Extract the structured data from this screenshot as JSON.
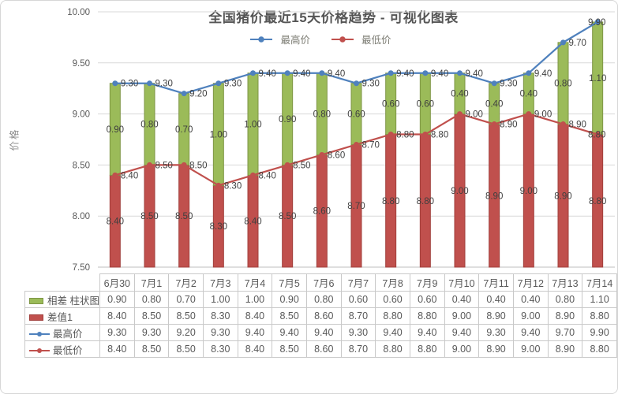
{
  "window": {
    "background": "#ffffff",
    "border_color": "#d6d6d6"
  },
  "chart": {
    "title": "全国猪价最近15天价格趋势 - 可视化图表",
    "ylabel": "价格",
    "legend": [
      {
        "label": "最高价",
        "color": "#4F81BD",
        "icon": "blue-line-marker-icon"
      },
      {
        "label": "最低价",
        "color": "#C0504D",
        "icon": "red-line-marker-icon"
      }
    ]
  },
  "chart_data": {
    "type": "combo",
    "categories": [
      "6月30",
      "7月1",
      "7月2",
      "7月3",
      "7月4",
      "7月5",
      "7月6",
      "7月7",
      "7月8",
      "7月9",
      "7月10",
      "7月11",
      "7月12",
      "7月13",
      "7月14"
    ],
    "series": [
      {
        "name": "相差 柱状图",
        "type": "bar",
        "role": "diff",
        "color": "#9BBB59",
        "border": "#7E9645",
        "values": [
          0.9,
          0.8,
          0.7,
          1.0,
          1.0,
          0.9,
          0.8,
          0.6,
          0.6,
          0.6,
          0.4,
          0.4,
          0.4,
          0.8,
          1.1
        ]
      },
      {
        "name": "差值1",
        "type": "bar",
        "role": "base",
        "color": "#C0504D",
        "border": "#A13F3C",
        "values": [
          8.4,
          8.5,
          8.5,
          8.3,
          8.4,
          8.5,
          8.6,
          8.7,
          8.8,
          8.8,
          9.0,
          8.9,
          9.0,
          8.9,
          8.8
        ]
      },
      {
        "name": "最高价",
        "type": "line",
        "role": "high",
        "color": "#4F81BD",
        "values": [
          9.3,
          9.3,
          9.2,
          9.3,
          9.4,
          9.4,
          9.4,
          9.3,
          9.4,
          9.4,
          9.4,
          9.3,
          9.4,
          9.7,
          9.9
        ]
      },
      {
        "name": "最低价",
        "type": "line",
        "role": "low",
        "color": "#C0504D",
        "values": [
          8.4,
          8.5,
          8.5,
          8.3,
          8.4,
          8.5,
          8.6,
          8.7,
          8.8,
          8.8,
          9.0,
          8.9,
          9.0,
          8.9,
          8.8
        ]
      }
    ],
    "ylim": [
      7.5,
      10.0
    ],
    "yticks": [
      "7.50",
      "8.00",
      "8.50",
      "9.00",
      "9.50",
      "10.00"
    ],
    "grid": true,
    "legend_position": "top",
    "colors": {
      "gridline": "#D9D9D9",
      "axis_line": "#BFBFBF",
      "data_label": "#3f3f3f",
      "tick_label": "#595959"
    }
  },
  "table": {
    "columns": [
      "6月30",
      "7月1",
      "7月2",
      "7月3",
      "7月4",
      "7月5",
      "7月6",
      "7月7",
      "7月8",
      "7月9",
      "7月10",
      "7月11",
      "7月12",
      "7月13",
      "7月14"
    ],
    "rows": [
      {
        "label": "相差 柱状图",
        "icon": "green-bar-swatch-icon",
        "color": "#9BBB59",
        "border": "#7E9645",
        "values": [
          "0.90",
          "0.80",
          "0.70",
          "1.00",
          "1.00",
          "0.90",
          "0.80",
          "0.60",
          "0.60",
          "0.60",
          "0.40",
          "0.40",
          "0.40",
          "0.80",
          "1.10"
        ]
      },
      {
        "label": "差值1",
        "icon": "red-bar-swatch-icon",
        "color": "#C0504D",
        "border": "#A13F3C",
        "values": [
          "8.40",
          "8.50",
          "8.50",
          "8.30",
          "8.40",
          "8.50",
          "8.60",
          "8.70",
          "8.80",
          "8.80",
          "9.00",
          "8.90",
          "9.00",
          "8.90",
          "8.80"
        ]
      },
      {
        "label": "最高价",
        "icon": "blue-line-marker-icon",
        "color": "#4F81BD",
        "values": [
          "9.30",
          "9.30",
          "9.20",
          "9.30",
          "9.40",
          "9.40",
          "9.40",
          "9.30",
          "9.40",
          "9.40",
          "9.40",
          "9.30",
          "9.40",
          "9.70",
          "9.90"
        ]
      },
      {
        "label": "最低价",
        "icon": "red-line-marker-icon",
        "color": "#C0504D",
        "values": [
          "8.40",
          "8.50",
          "8.50",
          "8.30",
          "8.40",
          "8.50",
          "8.60",
          "8.70",
          "8.80",
          "8.80",
          "9.00",
          "8.90",
          "9.00",
          "8.90",
          "8.80"
        ]
      }
    ]
  }
}
